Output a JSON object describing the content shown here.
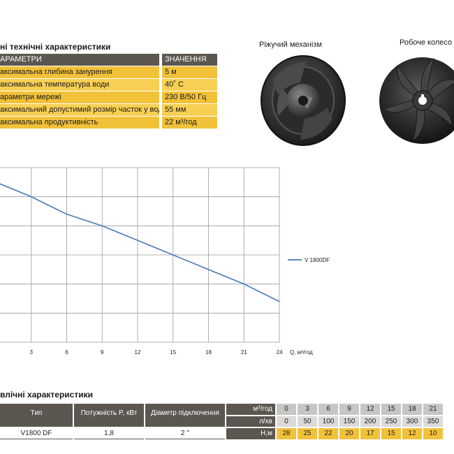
{
  "spec_section": {
    "title": "ні технічні характеристики",
    "header": [
      "АРАМЕТРИ",
      "ЗНАЧЕННЯ"
    ],
    "rows": [
      [
        "аксимальна глибина занурення",
        "5 м"
      ],
      [
        "аксимальна температура води",
        "40˚ C"
      ],
      [
        "араметри мережі",
        "230 В/50 Гц"
      ],
      [
        "аксимальний допустимий розмір часток у воді",
        "55 мм"
      ],
      [
        "аксимальна продуктивність",
        "22 м³/год"
      ]
    ]
  },
  "photos": {
    "cutting_label": "Ріжучий механізм",
    "impeller_label": "Робоче колесо"
  },
  "chart_data": {
    "type": "line",
    "x_ticks": [
      "3",
      "6",
      "9",
      "12",
      "15",
      "18",
      "21",
      "24"
    ],
    "xlabel": "Q, м³/год",
    "xlim": [
      0,
      24
    ],
    "ylim": [
      0,
      30
    ],
    "grid": true,
    "legend_position": "right",
    "series": [
      {
        "name": "V 1800DF",
        "color": "#4a78b8",
        "x": [
          0,
          3,
          6,
          9,
          12,
          15,
          18,
          21,
          24
        ],
        "y": [
          27.5,
          25,
          22,
          20,
          17.5,
          15,
          12.5,
          10,
          7
        ]
      }
    ]
  },
  "hydraulic_section": {
    "title": "влічні характеристики",
    "col_type": "Тип",
    "col_power": "Потужність P, кВт",
    "col_diameter": "Діаметр підключення",
    "unit_m3h": "м³/год",
    "unit_lmin": "л/хв",
    "unit_h": "Н,м",
    "q_m3h": [
      "0",
      "3",
      "6",
      "9",
      "12",
      "15",
      "18",
      "21"
    ],
    "q_lmin": [
      "0",
      "50",
      "100",
      "150",
      "200",
      "250",
      "300",
      "350"
    ],
    "model": "V1800 DF",
    "power": "1,8",
    "diameter": "2 ''",
    "head_m": [
      "28",
      "25",
      "22",
      "20",
      "17",
      "15",
      "12",
      "10"
    ]
  }
}
